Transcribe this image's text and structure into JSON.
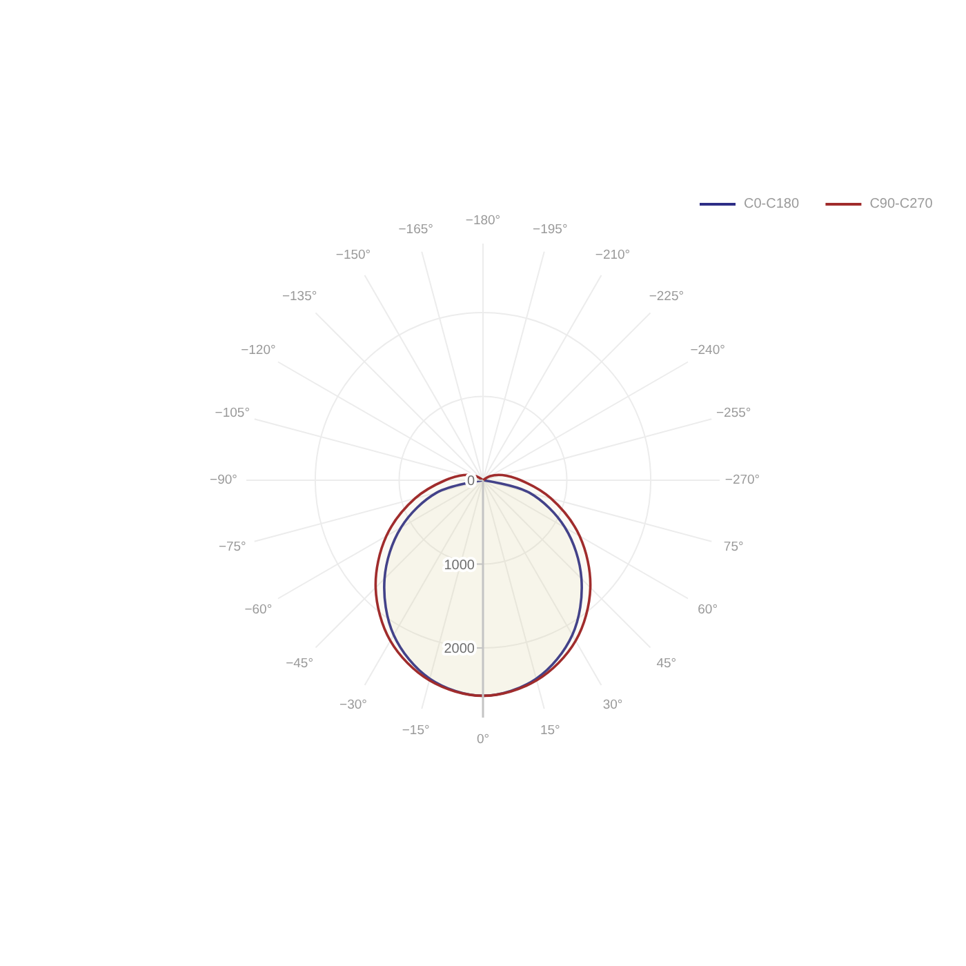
{
  "chart_data": {
    "type": "radar",
    "categories": [
      "−180°",
      "−195°",
      "−210°",
      "−225°",
      "−240°",
      "−255°",
      "−270°",
      "75°",
      "60°",
      "45°",
      "30°",
      "15°",
      "0°",
      "−15°",
      "−30°",
      "−45°",
      "−60°",
      "−75°",
      "−90°",
      "−105°",
      "−120°",
      "−135°",
      "−150°",
      "−165°"
    ],
    "series": [
      {
        "name": "C0-C180",
        "color": "#2e2e86",
        "values": [
          0,
          0,
          0,
          0,
          0,
          0,
          0,
          570,
          1130,
          1660,
          2130,
          2450,
          2570,
          2450,
          2130,
          1660,
          1130,
          570,
          0,
          0,
          0,
          0,
          0,
          0
        ]
      },
      {
        "name": "C90-C270",
        "color": "#a02c2c",
        "values": [
          0,
          0,
          0,
          0,
          100,
          240,
          450,
          840,
          1330,
          1810,
          2210,
          2470,
          2570,
          2470,
          2210,
          1810,
          1330,
          840,
          450,
          240,
          100,
          0,
          0,
          0
        ]
      }
    ],
    "ylim": [
      0,
      2830
    ],
    "yticks": [
      0,
      1000,
      2000
    ],
    "grid": true,
    "legend": "top right"
  }
}
